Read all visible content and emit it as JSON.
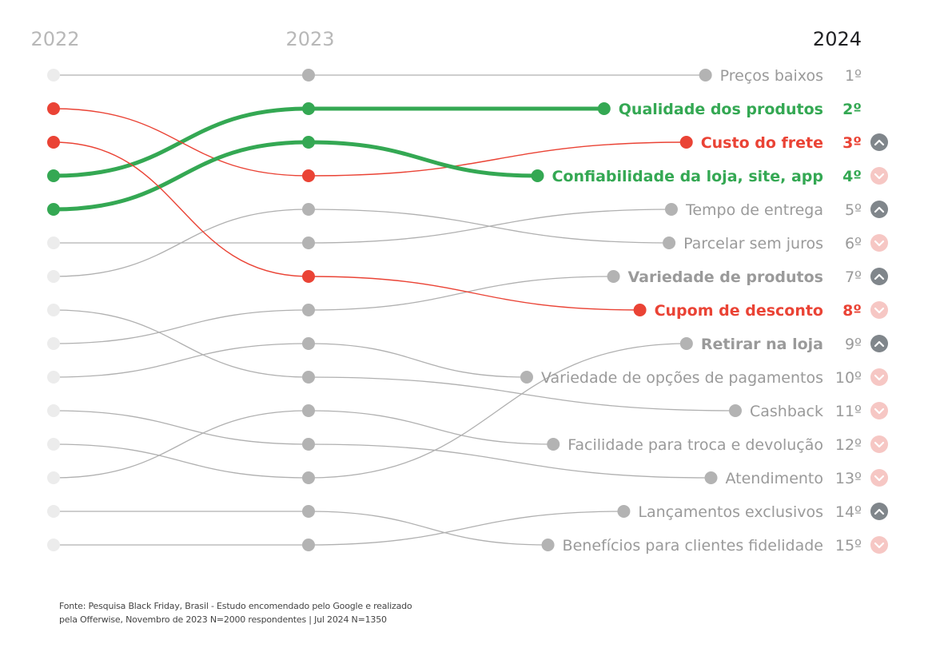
{
  "chart_data": {
    "type": "bump",
    "title": "",
    "years": [
      "2022",
      "2023",
      "2024"
    ],
    "y_axis": "rank (1 = top)",
    "colors": {
      "up": "#34a853",
      "down": "#ea4335",
      "neutral_line": "#b0b0b0",
      "neutral_dot_2022": "#ececec",
      "neutral_dot": "#b3b3b3",
      "neutral_text": "#9a9a9a",
      "year_muted": "#b8b8b8",
      "year_current": "#202124",
      "icon_up_bg": "#80868b",
      "icon_down_bg": "#f6c7c4"
    },
    "series": [
      {
        "name": "Preços baixos",
        "ranks": [
          1,
          1,
          1
        ],
        "highlight": "none",
        "bold": false,
        "trend": "none"
      },
      {
        "name": "Qualidade dos produtos",
        "ranks": [
          4,
          2,
          2
        ],
        "highlight": "up",
        "bold": true,
        "trend": "none"
      },
      {
        "name": "Custo do frete",
        "ranks": [
          2,
          4,
          3
        ],
        "highlight": "down",
        "bold": true,
        "trend": "up"
      },
      {
        "name": "Confiabilidade da loja, site, app",
        "ranks": [
          5,
          3,
          4
        ],
        "highlight": "up",
        "bold": true,
        "trend": "down"
      },
      {
        "name": "Tempo de entrega",
        "ranks": [
          6,
          6,
          5
        ],
        "highlight": "none",
        "bold": false,
        "trend": "up"
      },
      {
        "name": "Parcelar sem juros",
        "ranks": [
          7,
          5,
          6
        ],
        "highlight": "none",
        "bold": false,
        "trend": "down"
      },
      {
        "name": "Variedade de produtos",
        "ranks": [
          9,
          8,
          7
        ],
        "highlight": "none",
        "bold": true,
        "trend": "up"
      },
      {
        "name": "Cupom de desconto",
        "ranks": [
          3,
          7,
          8
        ],
        "highlight": "down",
        "bold": true,
        "trend": "down"
      },
      {
        "name": "Retirar na loja",
        "ranks": [
          12,
          13,
          9
        ],
        "highlight": "none",
        "bold": true,
        "trend": "up"
      },
      {
        "name": "Variedade de opções de pagamentos",
        "ranks": [
          10,
          9,
          10
        ],
        "highlight": "none",
        "bold": false,
        "trend": "down"
      },
      {
        "name": "Cashback",
        "ranks": [
          8,
          10,
          11
        ],
        "highlight": "none",
        "bold": false,
        "trend": "down"
      },
      {
        "name": "Facilidade para troca e devolução",
        "ranks": [
          13,
          11,
          12
        ],
        "highlight": "none",
        "bold": false,
        "trend": "down"
      },
      {
        "name": "Atendimento",
        "ranks": [
          11,
          12,
          13
        ],
        "highlight": "none",
        "bold": false,
        "trend": "down"
      },
      {
        "name": "Lançamentos exclusivos",
        "ranks": [
          15,
          15,
          14
        ],
        "highlight": "none",
        "bold": false,
        "trend": "up"
      },
      {
        "name": "Benefícios para clientes fidelidade",
        "ranks": [
          14,
          14,
          15
        ],
        "highlight": "none",
        "bold": false,
        "trend": "down"
      }
    ],
    "rank_suffix": "º",
    "legend": "none",
    "grid": false
  },
  "footnote": {
    "line1": "Fonte: Pesquisa Black Friday, Brasil - Estudo encomendado pelo Google e realizado",
    "line2": "pela Offerwise, Novembro de  2023 N=2000 respondentes | Jul 2024 N=1350"
  }
}
